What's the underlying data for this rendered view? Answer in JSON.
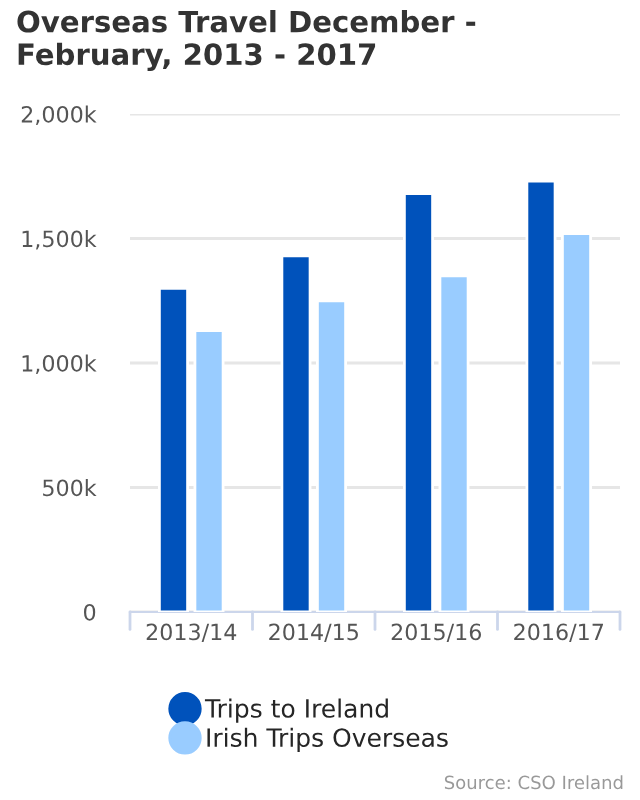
{
  "chart_data": {
    "type": "bar",
    "title": "Overseas Travel December - February, 2013 - 2017",
    "categories": [
      "2013/14",
      "2014/15",
      "2015/16",
      "2016/17"
    ],
    "series": [
      {
        "name": "Trips to Ireland",
        "color": "#0052bb",
        "values": [
          1300,
          1430,
          1680,
          1730
        ]
      },
      {
        "name": "Irish Trips Overseas",
        "color": "#99ccff",
        "values": [
          1130,
          1250,
          1350,
          1520
        ]
      }
    ],
    "ylim": [
      0,
      2000
    ],
    "yticks": [
      0,
      {
        "value": 500,
        "label": "500k"
      },
      {
        "value": 1000,
        "label": "1,000k"
      },
      {
        "value": 1500,
        "label": "1,500k"
      },
      {
        "value": 2000,
        "label": "2,000k"
      }
    ],
    "grid": "y",
    "legend": "bottom",
    "annotations": [
      "Source: CSO Ireland"
    ]
  }
}
